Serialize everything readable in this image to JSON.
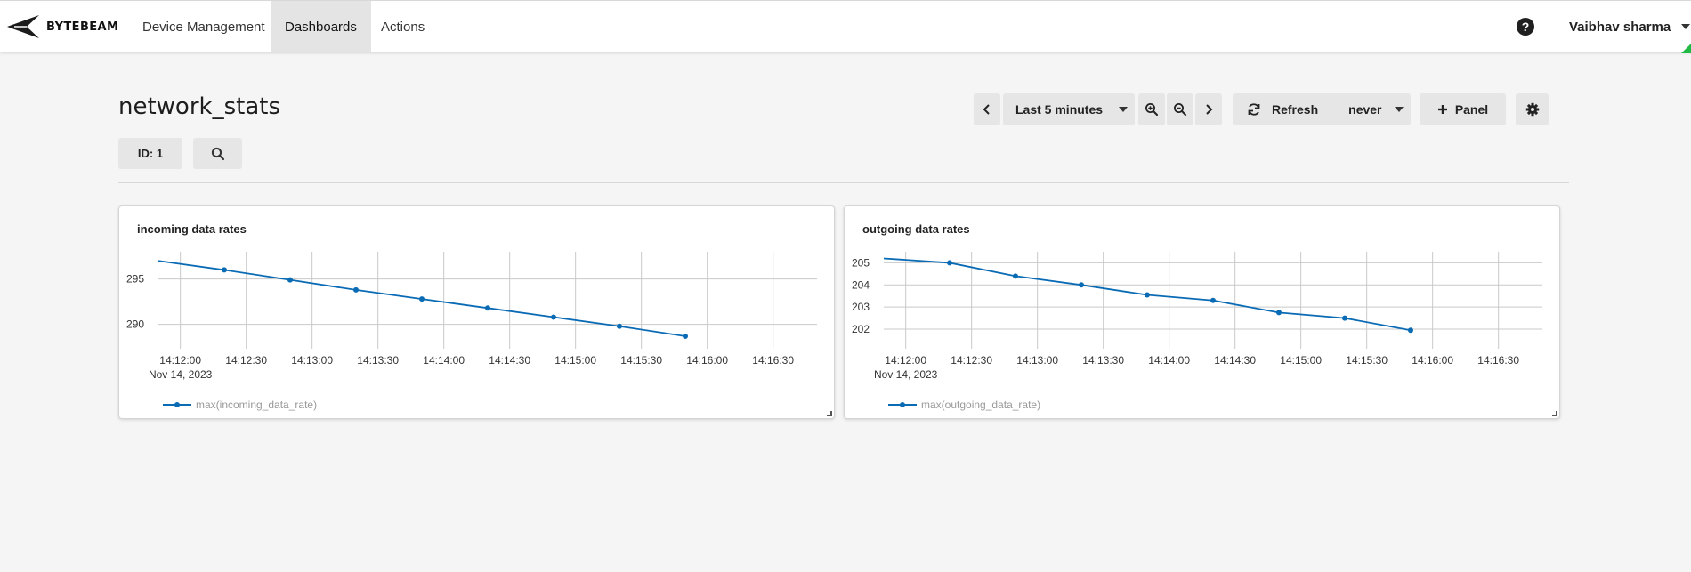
{
  "app": {
    "brand": "BYTEBEAM",
    "nav": [
      "Device Management",
      "Dashboards",
      "Actions"
    ],
    "active_nav": "Dashboards",
    "user": "Vaibhav sharma",
    "help_icon": "question-circle-icon"
  },
  "dashboard": {
    "title": "network_stats",
    "filter_label": "ID: 1",
    "time_range": "Last 5 minutes",
    "refresh_label": "Refresh",
    "refresh_interval": "never",
    "add_panel_label": "Panel",
    "icons": {
      "prev": "chevron-left-icon",
      "next": "chevron-right-icon",
      "zoom_in": "zoom-in-icon",
      "zoom_out": "zoom-out-icon",
      "refresh": "refresh-icon",
      "add": "plus-icon",
      "settings": "gear-icon",
      "search": "search-icon"
    }
  },
  "colors": {
    "series": "#0a6bb5",
    "active_nav_bg": "#e4e4e4",
    "button_bg": "#e6e6e6",
    "corner_accent": "#21ba45"
  },
  "chart_data": [
    {
      "type": "line",
      "title": "incoming data rates",
      "x_tick_labels": [
        "14:12:00",
        "14:12:30",
        "14:13:00",
        "14:13:30",
        "14:14:00",
        "14:14:30",
        "14:15:00",
        "14:15:30",
        "14:16:00",
        "14:16:30"
      ],
      "x_date_label": "Nov 14, 2023",
      "y_ticks": [
        295,
        290
      ],
      "ylim": [
        288.5,
        298
      ],
      "xlim": [
        "14:11:50",
        "14:16:50"
      ],
      "grid": true,
      "legend_position": "bottom-left",
      "series": [
        {
          "name": "max(incoming_data_rate)",
          "x": [
            "14:11:50",
            "14:12:20",
            "14:12:50",
            "14:13:20",
            "14:13:50",
            "14:14:20",
            "14:14:50",
            "14:15:20",
            "14:15:50"
          ],
          "y": [
            297.0,
            296.0,
            294.9,
            293.8,
            292.8,
            291.8,
            290.8,
            289.8,
            288.7
          ],
          "markers_from_index": 1
        }
      ]
    },
    {
      "type": "line",
      "title": "outgoing data rates",
      "x_tick_labels": [
        "14:12:00",
        "14:12:30",
        "14:13:00",
        "14:13:30",
        "14:14:00",
        "14:14:30",
        "14:15:00",
        "14:15:30",
        "14:16:00",
        "14:16:30"
      ],
      "x_date_label": "Nov 14, 2023",
      "y_ticks": [
        205,
        204,
        203,
        202
      ],
      "ylim": [
        201.6,
        205.5
      ],
      "xlim": [
        "14:11:50",
        "14:16:50"
      ],
      "grid": true,
      "legend_position": "bottom-left",
      "series": [
        {
          "name": "max(outgoing_data_rate)",
          "x": [
            "14:11:50",
            "14:12:20",
            "14:12:50",
            "14:13:20",
            "14:13:50",
            "14:14:20",
            "14:14:50",
            "14:15:20",
            "14:15:50"
          ],
          "y": [
            205.2,
            205.0,
            204.4,
            204.0,
            203.55,
            203.3,
            202.75,
            202.5,
            201.95
          ],
          "markers_from_index": 1
        }
      ]
    }
  ]
}
